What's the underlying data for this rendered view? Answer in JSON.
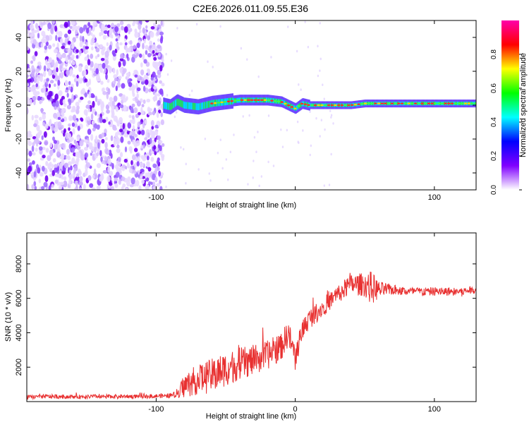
{
  "figure": {
    "title": "C2E6.2026.011.09.55.E36"
  },
  "chart_data": [
    {
      "type": "heatmap",
      "panel": "top",
      "xlabel": "Height of straight line (km)",
      "ylabel": "Frequency (Hz)",
      "xlim": [
        -193,
        130
      ],
      "ylim": [
        -50,
        50
      ],
      "xticks": [
        -100,
        0,
        100
      ],
      "xtick_labels": [
        "-100",
        "",
        "100"
      ],
      "yticks": [
        -40,
        -20,
        0,
        20,
        40
      ],
      "ytick_labels": [
        "-40",
        "-20",
        "0",
        "20",
        "40"
      ],
      "noise_region_x": [
        -193,
        -95
      ],
      "signal_ridge": {
        "x": [
          -95,
          -90,
          -85,
          -80,
          -70,
          -60,
          -50,
          -40,
          -30,
          -20,
          -10,
          -5,
          0,
          5,
          10,
          20,
          30,
          40,
          50,
          60,
          70,
          80,
          90,
          100,
          110,
          120,
          130
        ],
        "frequency_hz": [
          0,
          -1,
          2,
          0,
          -1,
          1,
          2,
          3,
          3,
          3,
          2,
          0,
          -2,
          1,
          0,
          0,
          0,
          0,
          1,
          1,
          1,
          1,
          1,
          1,
          1,
          1,
          1
        ]
      },
      "colorbar": {
        "label": "Normalized spectral amplitude",
        "range": [
          0,
          1
        ],
        "ticks": [
          0.0,
          0.2,
          0.4,
          0.6,
          0.8
        ],
        "tick_labels": [
          "0.0",
          "0.2",
          "0.4",
          "0.6",
          "0.8"
        ],
        "colormap": [
          "#ffffff",
          "#8000ff",
          "#0000ff",
          "#00ffff",
          "#00ff00",
          "#ffff00",
          "#ff0000",
          "#ff00aa"
        ]
      }
    },
    {
      "type": "line",
      "panel": "bottom",
      "xlabel": "Height of straight line (km)",
      "ylabel": "SNR (10 * v/v)",
      "xlim": [
        -193,
        130
      ],
      "ylim": [
        0,
        9800
      ],
      "xticks": [
        -100,
        0,
        100
      ],
      "xtick_labels": [
        "-100",
        "0",
        "100"
      ],
      "yticks": [
        2000,
        4000,
        6000,
        8000
      ],
      "ytick_labels": [
        "2000",
        "4000",
        "6000",
        "8000"
      ],
      "series": [
        {
          "name": "SNR",
          "color": "#e83030",
          "x": [
            -193,
            -180,
            -160,
            -140,
            -120,
            -100,
            -90,
            -86,
            -80,
            -70,
            -60,
            -50,
            -40,
            -30,
            -20,
            -10,
            -5,
            0,
            5,
            10,
            20,
            30,
            40,
            50,
            55,
            60,
            70,
            80,
            90,
            100,
            110,
            120,
            130
          ],
          "y": [
            250,
            300,
            280,
            300,
            300,
            320,
            350,
            400,
            900,
            1300,
            1500,
            1900,
            2200,
            2400,
            2700,
            3200,
            4000,
            2500,
            4200,
            4800,
            5500,
            6200,
            6800,
            6800,
            6600,
            6500,
            6500,
            6400,
            6400,
            6400,
            6400,
            6400,
            6500
          ],
          "noise_amplitude": [
            120,
            120,
            120,
            120,
            120,
            120,
            150,
            200,
            700,
            900,
            1000,
            1000,
            950,
            900,
            850,
            800,
            800,
            700,
            650,
            600,
            550,
            550,
            600,
            700,
            1000,
            500,
            300,
            250,
            250,
            250,
            250,
            250,
            200
          ]
        }
      ]
    }
  ]
}
